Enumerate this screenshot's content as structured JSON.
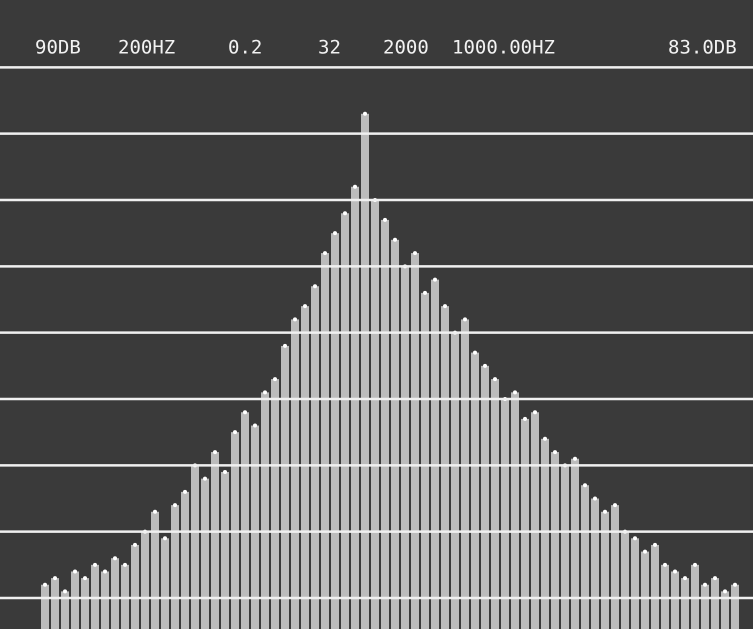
{
  "chart_data": {
    "type": "bar",
    "readout": [
      "90DB",
      "200HZ",
      "0.2",
      "32",
      "2000",
      "1000.00HZ",
      "83.0DB"
    ],
    "values": [
      2,
      3,
      1,
      4,
      3,
      5,
      4,
      6,
      5,
      8,
      10,
      13,
      9,
      14,
      16,
      20,
      18,
      22,
      19,
      25,
      28,
      26,
      31,
      33,
      38,
      42,
      44,
      47,
      52,
      55,
      58,
      62,
      73,
      60,
      57,
      54,
      50,
      52,
      46,
      48,
      44,
      40,
      42,
      37,
      35,
      33,
      30,
      31,
      27,
      28,
      24,
      22,
      20,
      21,
      17,
      15,
      13,
      14,
      10,
      9,
      7,
      8,
      5,
      4,
      3,
      5,
      2,
      3,
      1,
      2
    ],
    "color": "#d4d4d4",
    "ylim": [
      0,
      90
    ],
    "yticks": [
      0,
      10,
      20,
      30,
      40,
      50,
      60,
      70,
      80
    ],
    "grid": true
  }
}
